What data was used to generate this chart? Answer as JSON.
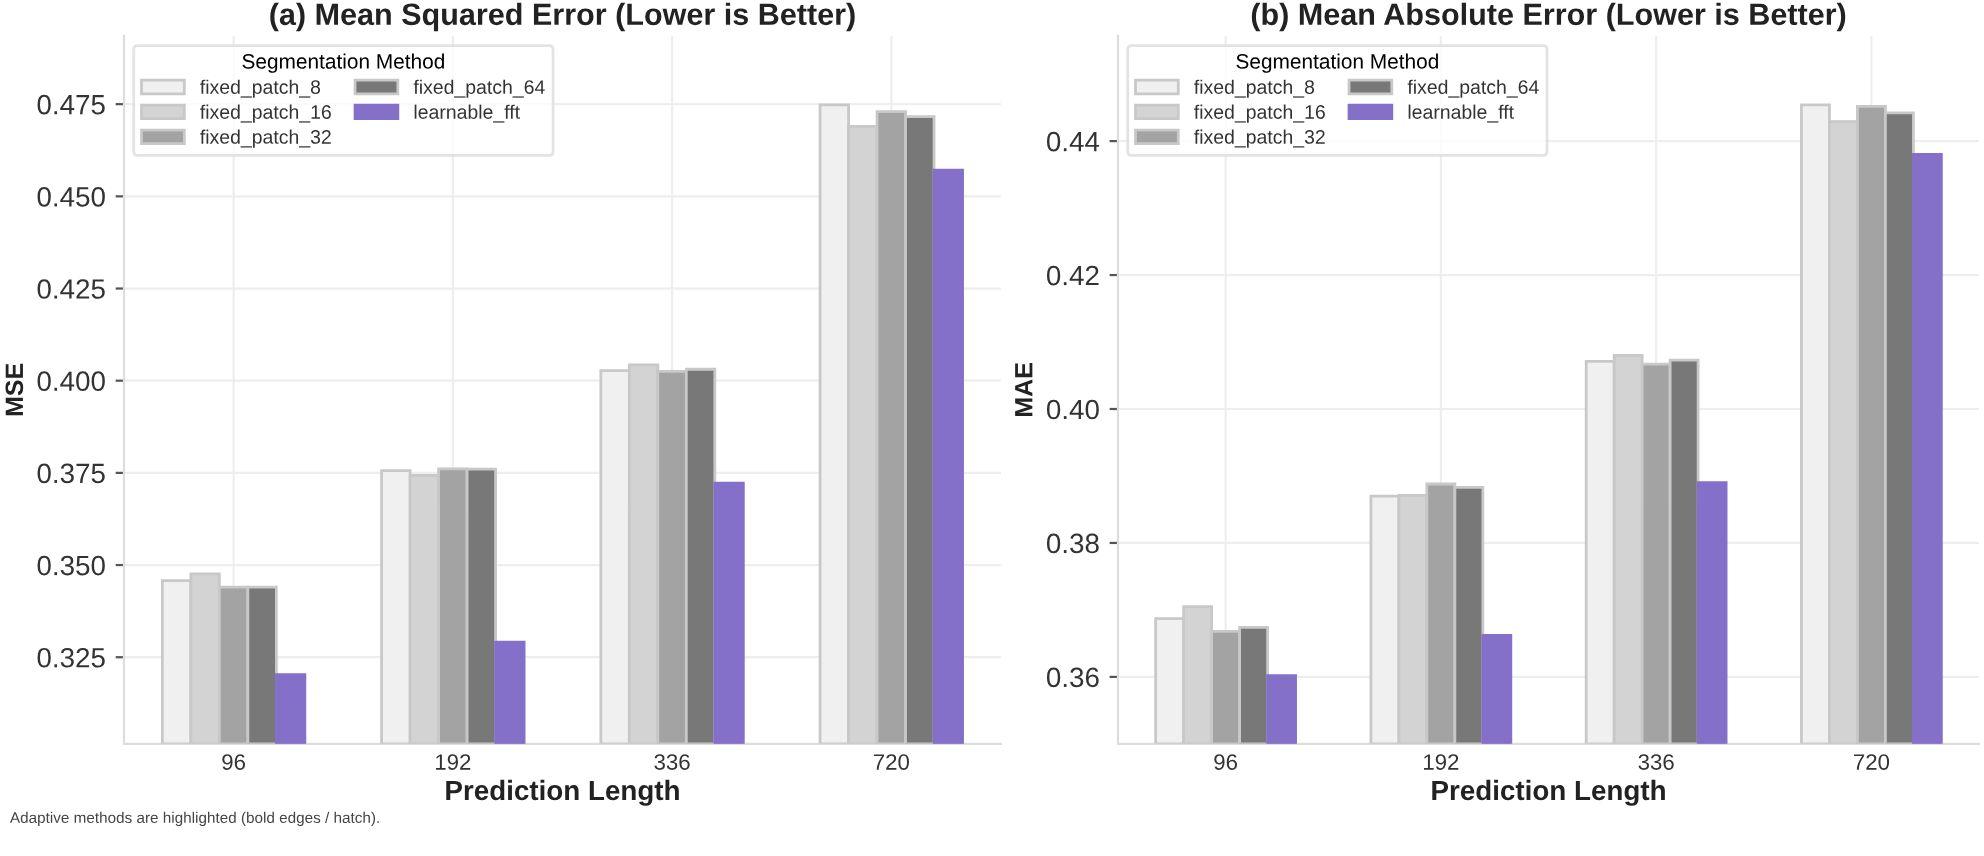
{
  "chart_data": [
    {
      "type": "bar",
      "title": "(a) Mean Squared Error (Lower is Better)",
      "xlabel": "Prediction Length",
      "ylabel": "MSE",
      "legend_title": "Segmentation Method",
      "legend": "top left",
      "grid": true,
      "categories": [
        "96",
        "192",
        "336",
        "720"
      ],
      "series": [
        {
          "name": "fixed_patch_8",
          "color": "#f0f0f0",
          "values": [
            0.3458,
            0.3756,
            0.4027,
            0.4748
          ]
        },
        {
          "name": "fixed_patch_16",
          "color": "#d3d3d3",
          "values": [
            0.3476,
            0.3743,
            0.4043,
            0.469
          ]
        },
        {
          "name": "fixed_patch_32",
          "color": "#a3a3a3",
          "values": [
            0.344,
            0.3761,
            0.4025,
            0.473
          ]
        },
        {
          "name": "fixed_patch_64",
          "color": "#787878",
          "values": [
            0.344,
            0.376,
            0.4031,
            0.4716
          ]
        },
        {
          "name": "learnable_fft",
          "color": "#8470c8",
          "values": [
            0.3203,
            0.3291,
            0.3722,
            0.4571
          ]
        }
      ],
      "ylim": [
        0.3015,
        0.4935
      ],
      "yticks": [
        {
          "value": 0.325,
          "label": "0.325"
        },
        {
          "value": 0.35,
          "label": "0.350"
        },
        {
          "value": 0.375,
          "label": "0.375"
        },
        {
          "value": 0.4,
          "label": "0.400"
        },
        {
          "value": 0.425,
          "label": "0.425"
        },
        {
          "value": 0.45,
          "label": "0.450"
        },
        {
          "value": 0.475,
          "label": "0.475"
        }
      ],
      "annotations": [
        "Adaptive methods are highlighted (bold edges / hatch)."
      ]
    },
    {
      "type": "bar",
      "title": "(b) Mean Absolute Error (Lower is Better)",
      "xlabel": "Prediction Length",
      "ylabel": "MAE",
      "legend_title": "Segmentation Method",
      "legend": "top left",
      "grid": true,
      "categories": [
        "96",
        "192",
        "336",
        "720"
      ],
      "series": [
        {
          "name": "fixed_patch_8",
          "color": "#f0f0f0",
          "values": [
            0.3687,
            0.387,
            0.4071,
            0.4454
          ]
        },
        {
          "name": "fixed_patch_16",
          "color": "#d3d3d3",
          "values": [
            0.3705,
            0.3871,
            0.408,
            0.4429
          ]
        },
        {
          "name": "fixed_patch_32",
          "color": "#a3a3a3",
          "values": [
            0.3668,
            0.3888,
            0.4067,
            0.4452
          ]
        },
        {
          "name": "fixed_patch_64",
          "color": "#787878",
          "values": [
            0.3674,
            0.3883,
            0.4073,
            0.4442
          ]
        },
        {
          "name": "learnable_fft",
          "color": "#8470c8",
          "values": [
            0.3602,
            0.3662,
            0.389,
            0.438
          ]
        }
      ],
      "ylim": [
        0.35,
        0.4557
      ],
      "yticks": [
        {
          "value": 0.36,
          "label": "0.36"
        },
        {
          "value": 0.38,
          "label": "0.38"
        },
        {
          "value": 0.4,
          "label": "0.40"
        },
        {
          "value": 0.42,
          "label": "0.42"
        },
        {
          "value": 0.44,
          "label": "0.44"
        }
      ]
    }
  ]
}
